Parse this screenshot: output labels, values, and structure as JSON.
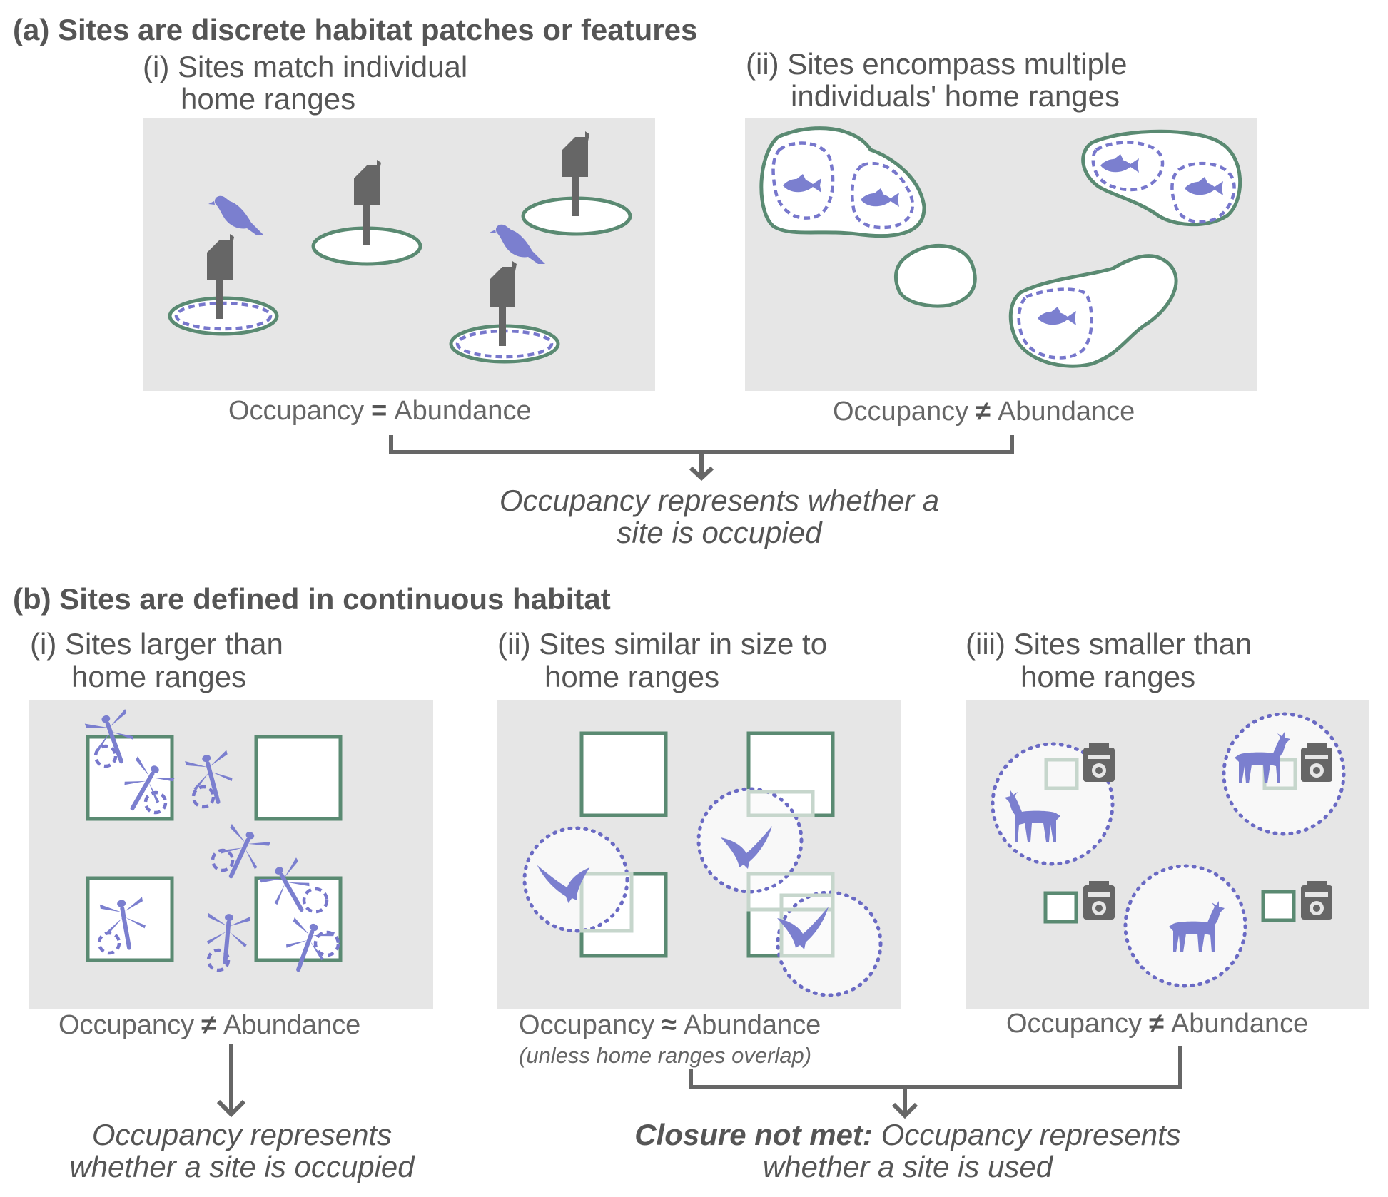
{
  "section_a": {
    "heading": "(a) Sites are discrete habitat patches or features",
    "panel_i": {
      "title_line1": "(i) Sites match individual",
      "title_line2": "home ranges",
      "eq_left": "Occupancy",
      "eq_symbol": "=",
      "eq_right": "Abundance"
    },
    "panel_ii": {
      "title_line1": "(ii) Sites encompass multiple",
      "title_line2": "individuals' home ranges",
      "eq_left": "Occupancy",
      "eq_symbol": "≠",
      "eq_right": "Abundance"
    },
    "conclusion_line1": "Occupancy represents whether a",
    "conclusion_line2": "site is occupied"
  },
  "section_b": {
    "heading": "(b) Sites are defined in continuous habitat",
    "panel_i": {
      "title_line1": "(i) Sites larger than",
      "title_line2": "home ranges",
      "eq_left": "Occupancy",
      "eq_symbol": "≠",
      "eq_right": "Abundance"
    },
    "panel_ii": {
      "title_line1": "(ii) Sites similar in size to",
      "title_line2": "home ranges",
      "eq_left": "Occupancy",
      "eq_symbol": "≈",
      "eq_right": "Abundance",
      "note": "(unless home ranges overlap)"
    },
    "panel_iii": {
      "title_line1": "(iii) Sites smaller than",
      "title_line2": "home ranges",
      "eq_left": "Occupancy",
      "eq_symbol": "≠",
      "eq_right": "Abundance"
    },
    "conclusion_left_line1": "Occupancy represents",
    "conclusion_left_line2": "whether a site is occupied",
    "conclusion_right_bold": "Closure not met:",
    "conclusion_right_line1": " Occupancy represents",
    "conclusion_right_line2": "whether a site is used"
  },
  "icons": {
    "bird": "bird-icon",
    "birdhouse": "birdhouse-icon",
    "fish": "fish-icon",
    "dragonfly": "dragonfly-icon",
    "swift": "flying-bird-icon",
    "deer": "deer-icon",
    "camera": "camera-trap-icon"
  },
  "colors": {
    "site_outline": "#5a8a72",
    "animal": "#7b7fcf",
    "panel_bg": "#e6e6e6",
    "text": "#555555"
  }
}
